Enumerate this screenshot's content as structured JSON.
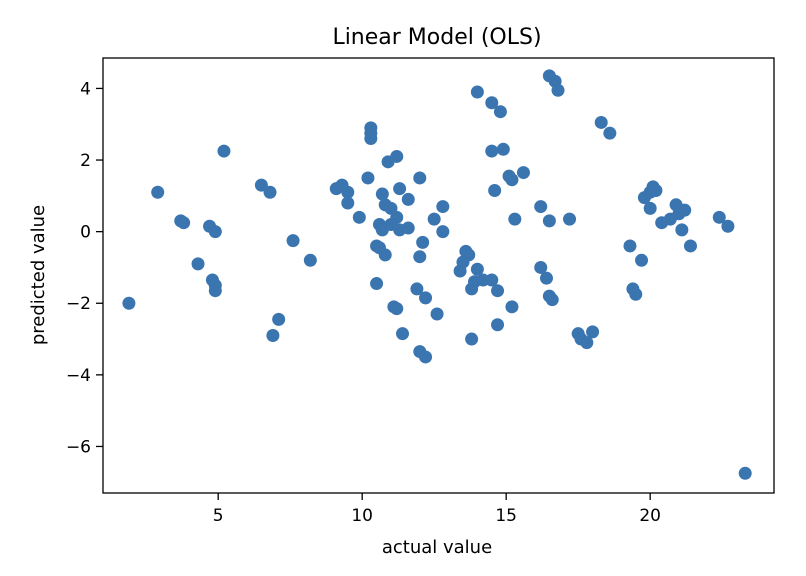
{
  "chart_data": {
    "type": "scatter",
    "title": "Linear Model (OLS)",
    "xlabel": "actual value",
    "ylabel": "predicted value",
    "xlim": [
      1.0,
      24.3
    ],
    "ylim": [
      -7.3,
      4.85
    ],
    "xticks": [
      5,
      10,
      15,
      20
    ],
    "yticks": [
      4,
      2,
      0,
      -2,
      -4,
      -6
    ],
    "ytick_labels": [
      "4",
      "2",
      "0",
      "−2",
      "−4",
      "−6"
    ],
    "grid": false,
    "marker_color": "#3a75b0",
    "points": [
      [
        1.9,
        -2.0
      ],
      [
        2.9,
        1.1
      ],
      [
        3.7,
        0.3
      ],
      [
        3.8,
        0.25
      ],
      [
        4.3,
        -0.9
      ],
      [
        4.7,
        0.15
      ],
      [
        4.8,
        -1.35
      ],
      [
        4.9,
        0.0
      ],
      [
        4.9,
        -1.5
      ],
      [
        4.9,
        -1.65
      ],
      [
        5.2,
        2.25
      ],
      [
        6.5,
        1.3
      ],
      [
        6.8,
        1.1
      ],
      [
        6.9,
        -2.9
      ],
      [
        7.1,
        -2.45
      ],
      [
        7.6,
        -0.25
      ],
      [
        8.2,
        -0.8
      ],
      [
        9.1,
        1.2
      ],
      [
        9.3,
        1.3
      ],
      [
        9.5,
        0.8
      ],
      [
        9.5,
        1.1
      ],
      [
        9.9,
        0.4
      ],
      [
        10.2,
        1.5
      ],
      [
        10.3,
        2.6
      ],
      [
        10.3,
        2.75
      ],
      [
        10.3,
        2.9
      ],
      [
        10.5,
        -0.4
      ],
      [
        10.5,
        -1.45
      ],
      [
        10.6,
        0.2
      ],
      [
        10.6,
        -0.45
      ],
      [
        10.7,
        1.05
      ],
      [
        10.7,
        0.05
      ],
      [
        10.8,
        -0.65
      ],
      [
        10.8,
        0.75
      ],
      [
        10.9,
        1.95
      ],
      [
        11.0,
        0.65
      ],
      [
        11.0,
        0.2
      ],
      [
        11.1,
        -2.1
      ],
      [
        11.2,
        0.4
      ],
      [
        11.2,
        -2.15
      ],
      [
        11.2,
        2.1
      ],
      [
        11.3,
        1.2
      ],
      [
        11.3,
        0.05
      ],
      [
        11.4,
        -2.85
      ],
      [
        11.6,
        0.1
      ],
      [
        11.6,
        0.9
      ],
      [
        11.9,
        -1.6
      ],
      [
        12.0,
        -0.7
      ],
      [
        12.0,
        1.5
      ],
      [
        12.0,
        -3.35
      ],
      [
        12.1,
        -0.3
      ],
      [
        12.2,
        -1.85
      ],
      [
        12.2,
        -3.5
      ],
      [
        12.5,
        0.35
      ],
      [
        12.6,
        -2.3
      ],
      [
        12.8,
        0.7
      ],
      [
        12.8,
        0.0
      ],
      [
        13.4,
        -1.1
      ],
      [
        13.5,
        -0.85
      ],
      [
        13.6,
        -0.55
      ],
      [
        13.7,
        -0.65
      ],
      [
        13.8,
        -3.0
      ],
      [
        13.8,
        -1.6
      ],
      [
        13.9,
        -1.4
      ],
      [
        14.0,
        3.9
      ],
      [
        14.0,
        -1.05
      ],
      [
        14.2,
        -1.35
      ],
      [
        14.5,
        2.25
      ],
      [
        14.5,
        -1.35
      ],
      [
        14.5,
        3.6
      ],
      [
        14.6,
        1.15
      ],
      [
        14.7,
        -1.65
      ],
      [
        14.7,
        -2.6
      ],
      [
        14.8,
        3.35
      ],
      [
        14.9,
        2.3
      ],
      [
        15.1,
        1.55
      ],
      [
        15.2,
        -2.1
      ],
      [
        15.2,
        1.45
      ],
      [
        15.3,
        0.35
      ],
      [
        15.6,
        1.65
      ],
      [
        16.2,
        -1.0
      ],
      [
        16.2,
        0.7
      ],
      [
        16.4,
        -1.3
      ],
      [
        16.5,
        -1.8
      ],
      [
        16.5,
        0.3
      ],
      [
        16.5,
        4.35
      ],
      [
        16.6,
        -1.9
      ],
      [
        16.7,
        4.2
      ],
      [
        16.8,
        3.95
      ],
      [
        17.2,
        0.35
      ],
      [
        17.5,
        -2.85
      ],
      [
        17.6,
        -3.0
      ],
      [
        17.8,
        -3.1
      ],
      [
        18.0,
        -2.8
      ],
      [
        18.3,
        3.05
      ],
      [
        18.6,
        2.75
      ],
      [
        19.3,
        -0.4
      ],
      [
        19.4,
        -1.6
      ],
      [
        19.5,
        -1.75
      ],
      [
        19.7,
        -0.8
      ],
      [
        19.8,
        0.95
      ],
      [
        20.0,
        1.1
      ],
      [
        20.0,
        0.65
      ],
      [
        20.1,
        1.25
      ],
      [
        20.2,
        1.15
      ],
      [
        20.4,
        0.25
      ],
      [
        20.7,
        0.35
      ],
      [
        20.9,
        0.75
      ],
      [
        21.0,
        0.5
      ],
      [
        21.1,
        0.05
      ],
      [
        21.2,
        0.6
      ],
      [
        21.4,
        -0.4
      ],
      [
        22.4,
        0.4
      ],
      [
        22.7,
        0.15
      ],
      [
        23.3,
        -6.75
      ]
    ]
  }
}
